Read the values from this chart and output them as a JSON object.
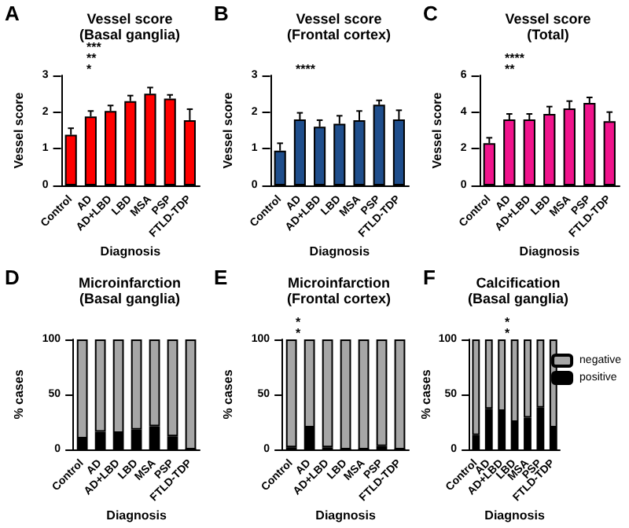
{
  "chart_data": [
    {
      "type": "bar",
      "title": "Vessel score\n(Basal ganglia)",
      "xlabel": "Diagnosis",
      "ylabel": "Vessel score",
      "categories": [
        "Control",
        "AD",
        "AD+LBD",
        "LBD",
        "MSA",
        "PSP",
        "FTLD-TDP"
      ],
      "values": [
        1.38,
        1.88,
        2.03,
        2.3,
        2.5,
        2.37,
        1.78
      ],
      "errors": [
        0.18,
        0.15,
        0.15,
        0.15,
        0.17,
        0.1,
        0.3
      ],
      "color": "#ff0000",
      "ylim": [
        0,
        3
      ],
      "yticks": [
        0,
        1,
        2,
        3
      ],
      "annotations": [
        "A",
        "*",
        "**",
        "***"
      ]
    },
    {
      "type": "bar",
      "title": "Vessel score\n(Frontal cortex)",
      "xlabel": "Diagnosis",
      "ylabel": "Vessel score",
      "categories": [
        "Control",
        "AD",
        "AD+LBD",
        "LBD",
        "MSA",
        "PSP",
        "FTLD-TDP"
      ],
      "values": [
        0.95,
        1.8,
        1.6,
        1.68,
        1.78,
        2.2,
        1.8
      ],
      "errors": [
        0.2,
        0.18,
        0.18,
        0.22,
        0.25,
        0.12,
        0.25
      ],
      "color": "#1f4e8c",
      "ylim": [
        0,
        3
      ],
      "yticks": [
        0,
        1,
        2,
        3
      ],
      "annotations": [
        "B",
        "****"
      ]
    },
    {
      "type": "bar",
      "title": "Vessel score\n(Total)",
      "xlabel": "Diagnosis",
      "ylabel": "Vessel score",
      "categories": [
        "Control",
        "AD",
        "AD+LBD",
        "LBD",
        "MSA",
        "PSP",
        "FTLD-TDP"
      ],
      "values": [
        2.3,
        3.6,
        3.6,
        3.9,
        4.2,
        4.5,
        3.5
      ],
      "errors": [
        0.3,
        0.3,
        0.3,
        0.4,
        0.4,
        0.3,
        0.5
      ],
      "color": "#f0148c",
      "ylim": [
        0,
        6
      ],
      "yticks": [
        0,
        2,
        4,
        6
      ],
      "annotations": [
        "C",
        "**",
        "****"
      ]
    },
    {
      "type": "bar",
      "title": "Microinfarction\n(Basal ganglia)",
      "xlabel": "Diagnosis",
      "ylabel": "% cases",
      "categories": [
        "Control",
        "AD",
        "AD+LBD",
        "LBD",
        "MSA",
        "PSP",
        "FTLD-TDP"
      ],
      "stacked": true,
      "series": [
        {
          "color": "#000000",
          "values": [
            10,
            16,
            15,
            18,
            21,
            12,
            0
          ]
        },
        {
          "color": "#a6a6a6",
          "values": [
            90,
            84,
            85,
            82,
            79,
            88,
            100
          ]
        }
      ],
      "ylim": [
        0,
        100
      ],
      "yticks": [
        0,
        50,
        100
      ],
      "annotations": [
        "D"
      ]
    },
    {
      "type": "bar",
      "title": "Microinfarction\n(Frontal cortex)",
      "xlabel": "Diagnosis",
      "ylabel": "% cases",
      "categories": [
        "Control",
        "AD",
        "AD+LBD",
        "LBD",
        "MSA",
        "PSP",
        "FTLD-TDP"
      ],
      "stacked": true,
      "series": [
        {
          "color": "#000000",
          "values": [
            2,
            20,
            2,
            0,
            0,
            3,
            0
          ]
        },
        {
          "color": "#a6a6a6",
          "values": [
            98,
            80,
            98,
            100,
            100,
            97,
            100
          ]
        }
      ],
      "ylim": [
        0,
        100
      ],
      "yticks": [
        0,
        50,
        100
      ],
      "annotations": [
        "E",
        "*",
        "*"
      ]
    },
    {
      "type": "bar",
      "title": "Calcification\n(Basal ganglia)",
      "xlabel": "Diagnosis",
      "ylabel": "% cases",
      "categories": [
        "Control",
        "AD",
        "AD+LBD",
        "LBD",
        "MSA",
        "PSP",
        "FTLD-TDP"
      ],
      "stacked": true,
      "legend": "right",
      "series": [
        {
          "name": "positive",
          "color": "#000000",
          "values": [
            13,
            37,
            35,
            25,
            29,
            38,
            20
          ]
        },
        {
          "name": "negative",
          "color": "#a6a6a6",
          "values": [
            87,
            63,
            65,
            75,
            71,
            62,
            80
          ]
        }
      ],
      "ylim": [
        0,
        100
      ],
      "yticks": [
        0,
        50,
        100
      ],
      "annotations": [
        "F",
        "*",
        "*"
      ]
    }
  ]
}
